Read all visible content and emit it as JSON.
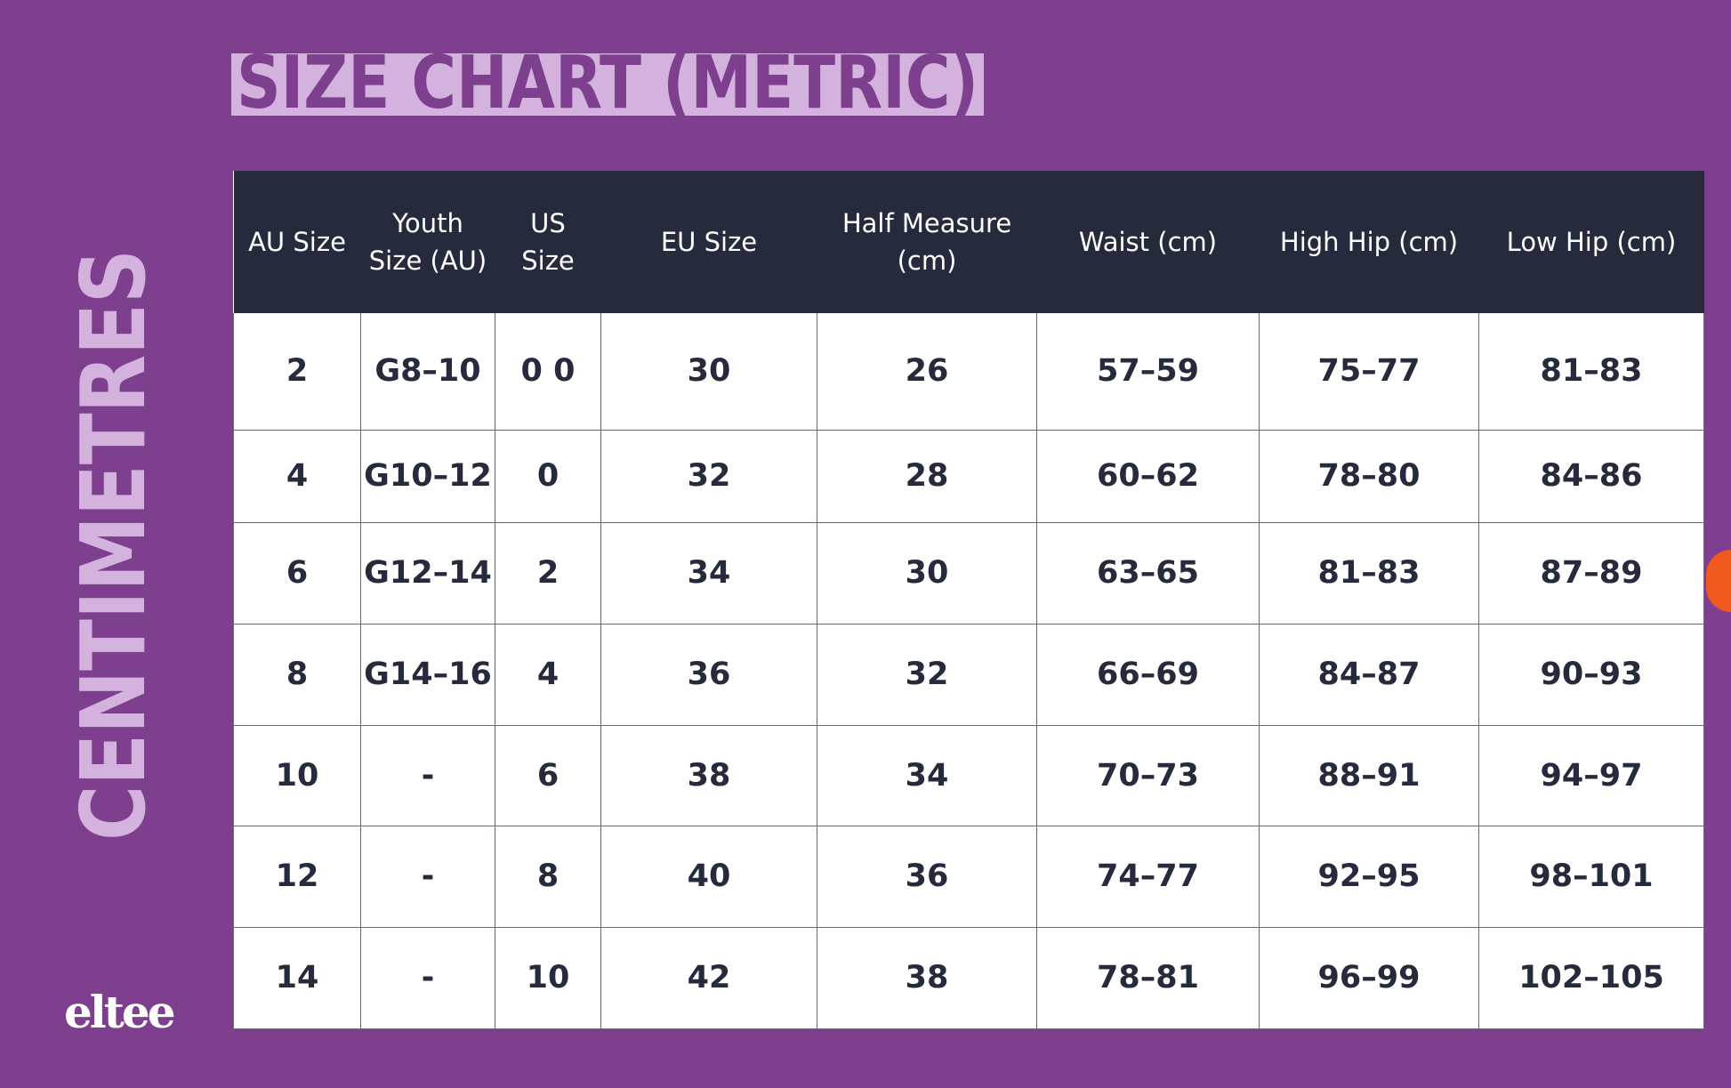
{
  "title": "SIZE CHART (METRIC)",
  "side_label": "CENTIMETRES",
  "logo": "eltee",
  "table": {
    "header": [
      "AU Size",
      "Youth Size (AU)",
      "US Size",
      "EU Size",
      "Half Measure (cm)",
      "Waist (cm)",
      "High Hip (cm)",
      "Low Hip (cm)"
    ],
    "rows": [
      [
        "2",
        "G8–10",
        "0 0",
        "30",
        "26",
        "57–59",
        "75–77",
        "81–83"
      ],
      [
        "4",
        "G10–12",
        "0",
        "32",
        "28",
        "60–62",
        "78–80",
        "84–86"
      ],
      [
        "6",
        "G12–14",
        "2",
        "34",
        "30",
        "63–65",
        "81–83",
        "87–89"
      ],
      [
        "8",
        "G14–16",
        "4",
        "36",
        "32",
        "66–69",
        "84–87",
        "90–93"
      ],
      [
        "10",
        "-",
        "6",
        "38",
        "34",
        "70–73",
        "88–91",
        "94–97"
      ],
      [
        "12",
        "-",
        "8",
        "40",
        "36",
        "74–77",
        "92–95",
        "98–101"
      ],
      [
        "14",
        "-",
        "10",
        "42",
        "38",
        "78–81",
        "96–99",
        "102–105"
      ]
    ]
  }
}
